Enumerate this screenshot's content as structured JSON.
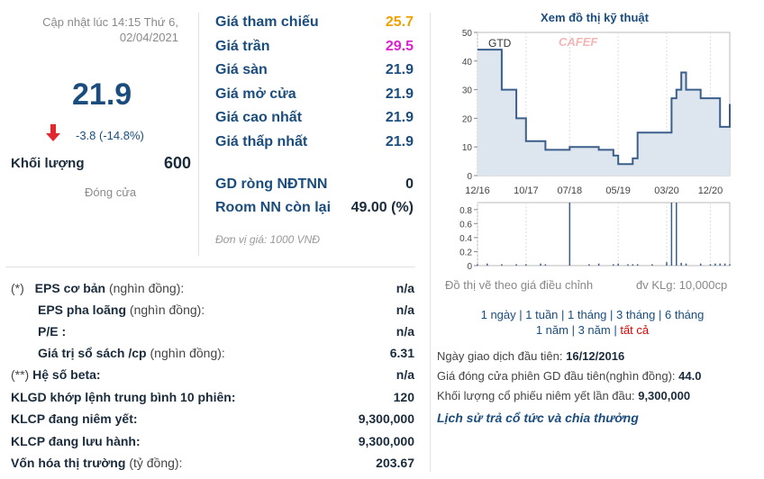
{
  "quote": {
    "updated": "Cập nhật lúc 14:15 Thứ 6, 02/04/2021",
    "price": "21.9",
    "change": "-3.8 (-14.8%)",
    "volume_label": "Khối lượng",
    "volume": "600",
    "close_label": "Đóng cửa",
    "colors": {
      "price": "#1a4d7e",
      "down_arrow": "#e0282e"
    }
  },
  "prices": [
    {
      "label": "Giá tham chiếu",
      "value": "25.7",
      "color": "#f0a000"
    },
    {
      "label": "Giá trần",
      "value": "29.5",
      "color": "#e020d0"
    },
    {
      "label": "Giá sàn",
      "value": "21.9",
      "color": "#1a4d7e"
    },
    {
      "label": "Giá mở cửa",
      "value": "21.9",
      "color": "#1a4d7e"
    },
    {
      "label": "Giá cao nhất",
      "value": "21.9",
      "color": "#1a4d7e"
    },
    {
      "label": "Giá thấp nhất",
      "value": "21.9",
      "color": "#1a4d7e"
    }
  ],
  "foreign": [
    {
      "label": "GD ròng NĐTNN",
      "value": "0"
    },
    {
      "label": "Room NN còn lại",
      "value": "49.00 (%)"
    }
  ],
  "unit_note": "Đơn vị giá: 1000 VNĐ",
  "fundamentals": [
    {
      "prefix": "(*)",
      "label": "EPS cơ bản",
      "note": "(nghìn đồng):",
      "value": "n/a"
    },
    {
      "prefix": "",
      "label": "EPS pha loãng",
      "note": "(nghìn đồng):",
      "value": "n/a"
    },
    {
      "prefix": "",
      "label": "P/E :",
      "note": "",
      "value": "n/a"
    },
    {
      "prefix": "",
      "label": "Giá trị sổ sách /cp",
      "note": "(nghìn đồng):",
      "value": "6.31"
    },
    {
      "prefix": "(**)",
      "label": "Hệ số beta:",
      "note": "",
      "value": "n/a"
    },
    {
      "prefix": "",
      "label": "KLGD khớp lệnh trung bình 10 phiên:",
      "note": "",
      "value": "120"
    },
    {
      "prefix": "",
      "label": "KLCP đang niêm yết:",
      "note": "",
      "value": "9,300,000"
    },
    {
      "prefix": "",
      "label": "KLCP đang lưu hành:",
      "note": "",
      "value": "9,300,000"
    },
    {
      "prefix": "",
      "label": "Vốn hóa thị trường",
      "note": "(tỷ đồng):",
      "value": "203.67"
    }
  ],
  "chart_section": {
    "title": "Xem đồ thị kỹ thuật",
    "note_left": "Đồ thị vẽ theo giá điều chỉnh",
    "note_right": "đv KLg: 10,000cp",
    "periods_row1": [
      "1 ngày",
      "1 tuần",
      "1 tháng",
      "3 tháng",
      "6 tháng"
    ],
    "periods_row2": [
      "1 năm",
      "3 năm",
      "tất cả"
    ],
    "active_period": "tất cả"
  },
  "listing": {
    "first_day_label": "Ngày giao dịch đầu tiên:",
    "first_day": "16/12/2016",
    "first_price_label": "Giá đóng cửa phiên GD đầu tiên(nghìn đồng):",
    "first_price": "44.0",
    "first_volume_label": "Khối lượng cổ phiếu niêm yết lần đầu:",
    "first_volume": "9,300,000",
    "history_link": "Lịch sử trả cổ tức và chia thưởng"
  },
  "chart_data": {
    "type": "line",
    "ticker": "GTD",
    "watermark": "CAFEF",
    "x_ticks": [
      "12/16",
      "10/17",
      "07/18",
      "05/19",
      "03/20",
      "12/20"
    ],
    "y_ticks": [
      0,
      10,
      20,
      30,
      40,
      50
    ],
    "ylim": [
      0,
      50
    ],
    "x": [
      "12/16",
      "02/17",
      "05/17",
      "08/17",
      "10/17",
      "01/18",
      "02/18",
      "07/18",
      "11/18",
      "01/19",
      "04/19",
      "05/19",
      "07/19",
      "08/19",
      "09/19",
      "12/19",
      "03/20",
      "04/20",
      "05/20",
      "06/20",
      "07/20",
      "10/20",
      "12/20",
      "01/21",
      "02/21",
      "03/21",
      "04/21"
    ],
    "values": [
      44,
      44,
      30,
      20,
      12,
      12,
      9,
      10,
      10,
      9,
      7,
      4,
      4,
      6,
      15,
      15,
      15,
      27,
      30,
      36,
      30,
      27,
      27,
      27,
      17,
      17,
      25
    ],
    "volume_ticks": [
      "0",
      "0.2",
      "0.4",
      "0.6",
      "0.8"
    ],
    "volume_ylim": [
      0,
      0.9
    ],
    "volume_series": [
      0.02,
      0.03,
      0.02,
      0.02,
      0.02,
      0.03,
      0.02,
      0.9,
      0.02,
      0.03,
      0.02,
      0.03,
      0.02,
      0.02,
      0.02,
      0.02,
      0.05,
      0.9,
      0.9,
      0.04,
      0.03,
      0.03,
      0.02,
      0.03,
      0.03,
      0.03,
      0.02
    ]
  }
}
